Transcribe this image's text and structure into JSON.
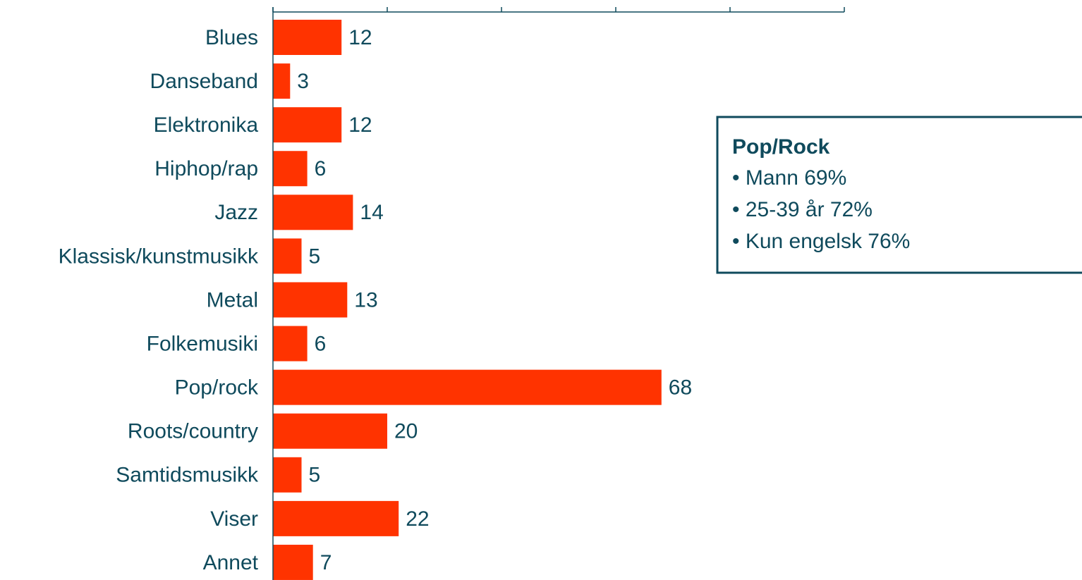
{
  "chart_data": {
    "type": "bar",
    "orientation": "horizontal",
    "categories": [
      "Blues",
      "Danseband",
      "Elektronika",
      "Hiphop/rap",
      "Jazz",
      "Klassisk/kunstmusikk",
      "Metal",
      "Folkemusiki",
      "Pop/rock",
      "Roots/country",
      "Samtidsmusikk",
      "Viser",
      "Annet"
    ],
    "values": [
      12,
      3,
      12,
      6,
      14,
      5,
      13,
      6,
      68,
      20,
      5,
      22,
      7
    ],
    "color": "#ff3300",
    "xlim": [
      0,
      100
    ],
    "xticks": [
      0,
      20,
      40,
      60,
      80,
      100
    ],
    "grid": false,
    "annotation": {
      "title": "Pop/Rock",
      "lines": [
        "• Mann 69%",
        "• 25-39 år 72%",
        "• Kun engelsk 76%"
      ]
    }
  }
}
